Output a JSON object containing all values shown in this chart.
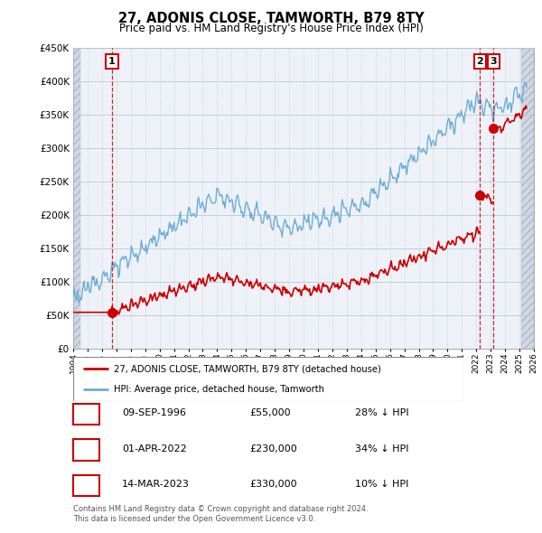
{
  "title": "27, ADONIS CLOSE, TAMWORTH, B79 8TY",
  "subtitle": "Price paid vs. HM Land Registry's House Price Index (HPI)",
  "legend_line1": "27, ADONIS CLOSE, TAMWORTH, B79 8TY (detached house)",
  "legend_line2": "HPI: Average price, detached house, Tamworth",
  "transactions": [
    {
      "label": "1",
      "date": "09-SEP-1996",
      "price": 55000,
      "hpi_pct": "28% ↓ HPI",
      "year": 1996.69
    },
    {
      "label": "2",
      "date": "01-APR-2022",
      "price": 230000,
      "hpi_pct": "34% ↓ HPI",
      "year": 2022.25
    },
    {
      "label": "3",
      "date": "14-MAR-2023",
      "price": 330000,
      "hpi_pct": "10% ↓ HPI",
      "year": 2023.2
    }
  ],
  "table_rows": [
    [
      "1",
      "09-SEP-1996",
      "£55,000",
      "28% ↓ HPI"
    ],
    [
      "2",
      "01-APR-2022",
      "£230,000",
      "34% ↓ HPI"
    ],
    [
      "3",
      "14-MAR-2023",
      "£330,000",
      "10% ↓ HPI"
    ]
  ],
  "footer": "Contains HM Land Registry data © Crown copyright and database right 2024.\nThis data is licensed under the Open Government Licence v3.0.",
  "hpi_color": "#6baed6",
  "price_color": "#cc0000",
  "xmin": 1994,
  "xmax": 2026,
  "ymin": 0,
  "ymax": 450000,
  "hatch_left_end": 1994.5,
  "hatch_right_start": 2025.1
}
